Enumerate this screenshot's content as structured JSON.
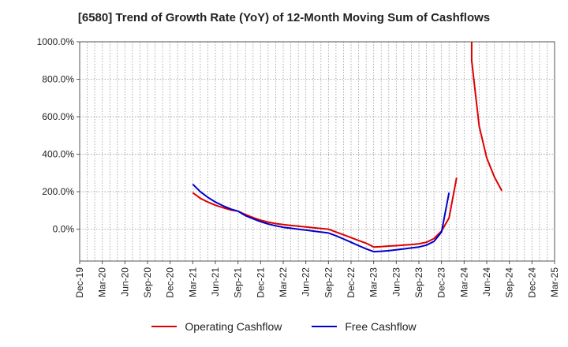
{
  "chart_data": {
    "type": "line",
    "title": "[6580]  Trend of Growth Rate (YoY) of 12-Month Moving Sum of Cashflows",
    "xlabel": "",
    "ylabel": "",
    "ylim": [
      -170,
      1000
    ],
    "yticks": [
      0,
      200,
      400,
      600,
      800,
      1000
    ],
    "ytick_labels": [
      "0.0%",
      "200.0%",
      "400.0%",
      "600.0%",
      "800.0%",
      "1000.0%"
    ],
    "x_months": [
      "2019-12",
      "2020-01",
      "2020-02",
      "2020-03",
      "2020-04",
      "2020-05",
      "2020-06",
      "2020-07",
      "2020-08",
      "2020-09",
      "2020-10",
      "2020-11",
      "2020-12",
      "2021-01",
      "2021-02",
      "2021-03",
      "2021-04",
      "2021-05",
      "2021-06",
      "2021-07",
      "2021-08",
      "2021-09",
      "2021-10",
      "2021-11",
      "2021-12",
      "2022-01",
      "2022-02",
      "2022-03",
      "2022-04",
      "2022-05",
      "2022-06",
      "2022-07",
      "2022-08",
      "2022-09",
      "2022-10",
      "2022-11",
      "2022-12",
      "2023-01",
      "2023-02",
      "2023-03",
      "2023-04",
      "2023-05",
      "2023-06",
      "2023-07",
      "2023-08",
      "2023-09",
      "2023-10",
      "2023-11",
      "2023-12",
      "2024-01",
      "2024-02",
      "2024-03",
      "2024-04",
      "2024-05",
      "2024-06",
      "2024-07",
      "2024-08",
      "2024-09",
      "2024-10",
      "2024-11",
      "2024-12",
      "2025-01",
      "2025-02",
      "2025-03"
    ],
    "xtick_labels": [
      "Dec-19",
      "Mar-20",
      "Jun-20",
      "Sep-20",
      "Dec-20",
      "Mar-21",
      "Jun-21",
      "Sep-21",
      "Dec-21",
      "Mar-22",
      "Jun-22",
      "Sep-22",
      "Dec-22",
      "Mar-23",
      "Jun-23",
      "Sep-23",
      "Dec-23",
      "Mar-24",
      "Jun-24",
      "Sep-24",
      "Dec-24",
      "Mar-25"
    ],
    "grid": true,
    "legend_position": "bottom",
    "series": [
      {
        "name": "Operating Cashflow",
        "color": "#dd0000",
        "points": [
          [
            "2021-03",
            195
          ],
          [
            "2021-04",
            165
          ],
          [
            "2021-05",
            145
          ],
          [
            "2021-06",
            128
          ],
          [
            "2021-07",
            115
          ],
          [
            "2021-08",
            103
          ],
          [
            "2021-09",
            96
          ],
          [
            "2021-10",
            78
          ],
          [
            "2021-11",
            62
          ],
          [
            "2021-12",
            48
          ],
          [
            "2022-01",
            38
          ],
          [
            "2022-02",
            30
          ],
          [
            "2022-03",
            25
          ],
          [
            "2022-04",
            20
          ],
          [
            "2022-05",
            16
          ],
          [
            "2022-06",
            12
          ],
          [
            "2022-07",
            8
          ],
          [
            "2022-08",
            4
          ],
          [
            "2022-09",
            0
          ],
          [
            "2022-10",
            -15
          ],
          [
            "2022-11",
            -30
          ],
          [
            "2022-12",
            -45
          ],
          [
            "2023-01",
            -60
          ],
          [
            "2023-02",
            -75
          ],
          [
            "2023-03",
            -95
          ],
          [
            "2023-04",
            -93
          ],
          [
            "2023-05",
            -90
          ],
          [
            "2023-06",
            -88
          ],
          [
            "2023-07",
            -85
          ],
          [
            "2023-08",
            -82
          ],
          [
            "2023-09",
            -78
          ],
          [
            "2023-10",
            -70
          ],
          [
            "2023-11",
            -50
          ],
          [
            "2023-12",
            -10
          ],
          [
            "2024-01",
            60
          ],
          [
            "2024-02",
            275
          ],
          null,
          [
            "2024-04",
            1000
          ],
          [
            "2024-04",
            900
          ],
          [
            "2024-05",
            550
          ],
          [
            "2024-06",
            380
          ],
          [
            "2024-07",
            280
          ],
          [
            "2024-08",
            205
          ]
        ]
      },
      {
        "name": "Free Cashflow",
        "color": "#0000cc",
        "points": [
          [
            "2021-03",
            240
          ],
          [
            "2021-04",
            200
          ],
          [
            "2021-05",
            170
          ],
          [
            "2021-06",
            145
          ],
          [
            "2021-07",
            125
          ],
          [
            "2021-08",
            108
          ],
          [
            "2021-09",
            96
          ],
          [
            "2021-10",
            72
          ],
          [
            "2021-11",
            55
          ],
          [
            "2021-12",
            40
          ],
          [
            "2022-01",
            28
          ],
          [
            "2022-02",
            18
          ],
          [
            "2022-03",
            10
          ],
          [
            "2022-04",
            5
          ],
          [
            "2022-05",
            0
          ],
          [
            "2022-06",
            -5
          ],
          [
            "2022-07",
            -10
          ],
          [
            "2022-08",
            -15
          ],
          [
            "2022-09",
            -20
          ],
          [
            "2022-10",
            -35
          ],
          [
            "2022-11",
            -52
          ],
          [
            "2022-12",
            -70
          ],
          [
            "2023-01",
            -88
          ],
          [
            "2023-02",
            -105
          ],
          [
            "2023-03",
            -120
          ],
          [
            "2023-04",
            -118
          ],
          [
            "2023-05",
            -115
          ],
          [
            "2023-06",
            -110
          ],
          [
            "2023-07",
            -105
          ],
          [
            "2023-08",
            -100
          ],
          [
            "2023-09",
            -95
          ],
          [
            "2023-10",
            -85
          ],
          [
            "2023-11",
            -65
          ],
          [
            "2023-12",
            -15
          ],
          [
            "2024-01",
            195
          ]
        ]
      }
    ]
  }
}
